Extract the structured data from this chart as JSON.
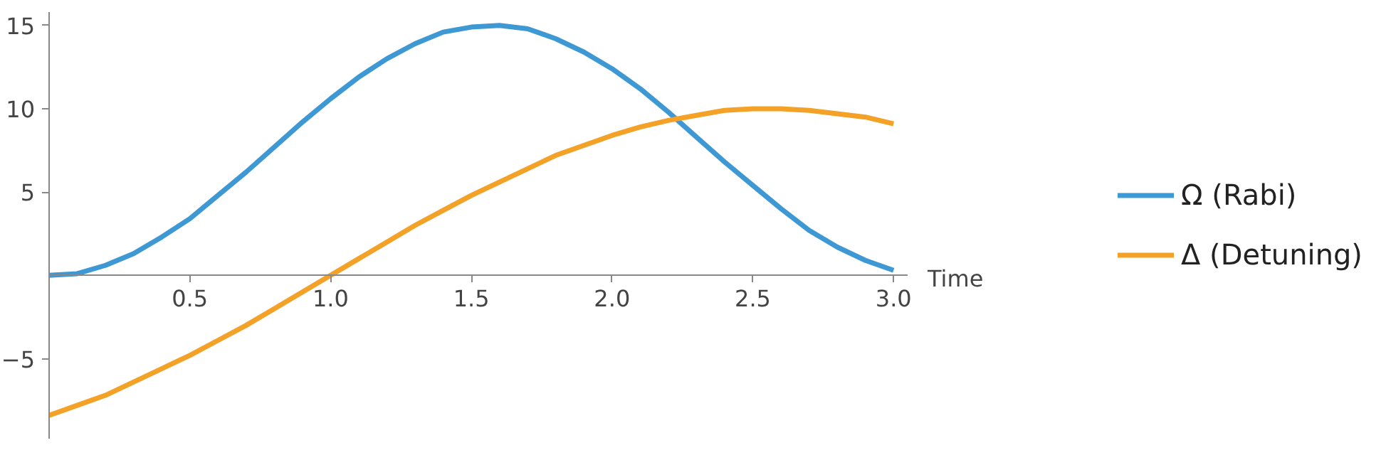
{
  "chart_data": {
    "type": "line",
    "xlabel": "Time",
    "x": [
      0,
      0.1,
      0.2,
      0.3,
      0.4,
      0.5,
      0.6,
      0.7,
      0.8,
      0.9,
      1.0,
      1.1,
      1.2,
      1.3,
      1.4,
      1.5,
      1.6,
      1.7,
      1.8,
      1.9,
      2.0,
      2.1,
      2.2,
      2.3,
      2.4,
      2.5,
      2.6,
      2.7,
      2.8,
      2.9,
      3.0
    ],
    "series": [
      {
        "name": "Ω (Rabi)",
        "color": "#3d98d3",
        "values": [
          0,
          0.1,
          0.6,
          1.3,
          2.3,
          3.4,
          4.8,
          6.2,
          7.7,
          9.2,
          10.6,
          11.9,
          13.0,
          13.9,
          14.6,
          14.9,
          15.0,
          14.8,
          14.2,
          13.4,
          12.4,
          11.2,
          9.8,
          8.3,
          6.8,
          5.4,
          4.0,
          2.7,
          1.7,
          0.9,
          0.3
        ]
      },
      {
        "name": "Δ (Detuning)",
        "color": "#f3a127",
        "values": [
          -8.4,
          -7.8,
          -7.2,
          -6.4,
          -5.6,
          -4.8,
          -3.9,
          -3.0,
          -2.0,
          -1.0,
          0,
          1.0,
          2.0,
          3.0,
          3.9,
          4.8,
          5.6,
          6.4,
          7.2,
          7.8,
          8.4,
          8.9,
          9.3,
          9.6,
          9.9,
          10.0,
          10.0,
          9.9,
          9.7,
          9.5,
          9.1
        ]
      }
    ],
    "xlim": [
      0,
      3.05
    ],
    "ylim": [
      -9.8,
      15.8
    ],
    "xticks": [
      0.5,
      {
        "value": 1,
        "label": "1.0"
      },
      1.5,
      {
        "value": 2,
        "label": "2.0"
      },
      2.5,
      {
        "value": 3,
        "label": "3.0"
      }
    ],
    "yticks": [
      {
        "value": -5,
        "label": "−5"
      },
      5,
      10,
      15
    ],
    "grid": false,
    "legend": "right",
    "line_style": "solid"
  }
}
